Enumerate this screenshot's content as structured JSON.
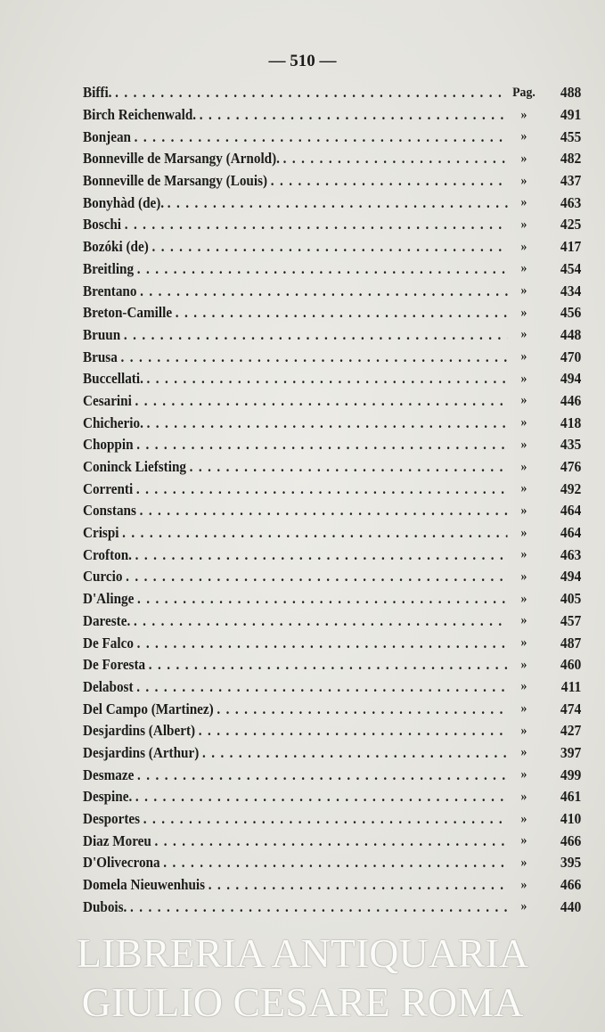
{
  "page_number": "— 510 —",
  "watermark": "LIBRERIA ANTIQUARIA GIULIO CESARE ROMA",
  "entries": [
    {
      "name": "Biffi.",
      "mark": "Pag.",
      "page": "488"
    },
    {
      "name": "Birch Reichenwald.",
      "mark": "»",
      "page": "491"
    },
    {
      "name": "Bonjean",
      "mark": "»",
      "page": "455"
    },
    {
      "name": "Bonneville de Marsangy (Arnold).",
      "mark": "»",
      "page": "482"
    },
    {
      "name": "Bonneville de Marsangy (Louis)",
      "mark": "»",
      "page": "437"
    },
    {
      "name": "Bonyhàd (de).",
      "mark": "»",
      "page": "463"
    },
    {
      "name": "Boschi",
      "mark": "»",
      "page": "425"
    },
    {
      "name": "Bozóki (de)",
      "mark": "»",
      "page": "417"
    },
    {
      "name": "Breitling",
      "mark": "»",
      "page": "454"
    },
    {
      "name": "Brentano",
      "mark": "»",
      "page": "434"
    },
    {
      "name": "Breton-Camille",
      "mark": "»",
      "page": "456"
    },
    {
      "name": "Bruun",
      "mark": "»",
      "page": "448"
    },
    {
      "name": "Brusa",
      "mark": "»",
      "page": "470"
    },
    {
      "name": "Buccellati.",
      "mark": "»",
      "page": "494"
    },
    {
      "name": "Cesarini",
      "mark": "»",
      "page": "446"
    },
    {
      "name": "Chicherio.",
      "mark": "»",
      "page": "418"
    },
    {
      "name": "Choppin",
      "mark": "»",
      "page": "435"
    },
    {
      "name": "Coninck Liefsting",
      "mark": "»",
      "page": "476"
    },
    {
      "name": "Correnti",
      "mark": "»",
      "page": "492"
    },
    {
      "name": "Constans",
      "mark": "»",
      "page": "464"
    },
    {
      "name": "Crispi",
      "mark": "»",
      "page": "464"
    },
    {
      "name": "Crofton.",
      "mark": "»",
      "page": "463"
    },
    {
      "name": "Curcio",
      "mark": "»",
      "page": "494"
    },
    {
      "name": "D'Alinge",
      "mark": "»",
      "page": "405"
    },
    {
      "name": "Dareste.",
      "mark": "»",
      "page": "457"
    },
    {
      "name": "De Falco",
      "mark": "»",
      "page": "487"
    },
    {
      "name": "De Foresta",
      "mark": "»",
      "page": "460"
    },
    {
      "name": "Delabost",
      "mark": "»",
      "page": "411"
    },
    {
      "name": "Del Campo (Martinez)",
      "mark": "»",
      "page": "474"
    },
    {
      "name": "Desjardins (Albert)",
      "mark": "»",
      "page": "427"
    },
    {
      "name": "Desjardins (Arthur)",
      "mark": "»",
      "page": "397"
    },
    {
      "name": "Desmaze",
      "mark": "»",
      "page": "499"
    },
    {
      "name": "Despine.",
      "mark": "»",
      "page": "461"
    },
    {
      "name": "Desportes",
      "mark": "»",
      "page": "410"
    },
    {
      "name": "Diaz Moreu",
      "mark": "»",
      "page": "466"
    },
    {
      "name": "D'Olivecrona",
      "mark": "»",
      "page": "395"
    },
    {
      "name": "Domela Nieuwenhuis",
      "mark": "»",
      "page": "466"
    },
    {
      "name": "Dubois.",
      "mark": "»",
      "page": "440"
    }
  ]
}
